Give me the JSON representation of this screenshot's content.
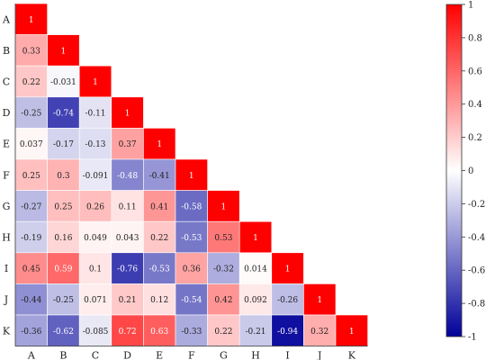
{
  "chart_data": {
    "type": "heatmap",
    "title": "",
    "variables": [
      "A",
      "B",
      "C",
      "D",
      "E",
      "F",
      "G",
      "H",
      "I",
      "J",
      "K"
    ],
    "lower_triangle": [
      [
        1
      ],
      [
        0.33,
        1
      ],
      [
        0.22,
        -0.031,
        1
      ],
      [
        -0.25,
        -0.74,
        -0.11,
        1
      ],
      [
        0.037,
        -0.17,
        -0.13,
        0.37,
        1
      ],
      [
        0.25,
        0.3,
        -0.091,
        -0.48,
        -0.41,
        1
      ],
      [
        -0.27,
        0.25,
        0.26,
        0.11,
        0.41,
        -0.58,
        1
      ],
      [
        -0.19,
        0.16,
        0.049,
        0.043,
        0.22,
        -0.53,
        0.53,
        1
      ],
      [
        0.45,
        0.59,
        0.1,
        -0.76,
        -0.53,
        0.36,
        -0.32,
        0.014,
        1
      ],
      [
        -0.44,
        -0.25,
        0.071,
        0.21,
        0.12,
        -0.54,
        0.42,
        0.092,
        -0.26,
        1
      ],
      [
        -0.36,
        -0.62,
        -0.085,
        0.72,
        0.63,
        -0.33,
        0.22,
        -0.21,
        -0.94,
        0.32,
        1
      ]
    ],
    "value_range": [
      -1,
      1
    ],
    "colorbar": {
      "ticks": [
        1,
        0.8,
        0.6,
        0.4,
        0.2,
        0,
        -0.2,
        -0.4,
        -0.6,
        -0.8,
        -1
      ],
      "tick_labels": [
        "1",
        "0.8",
        "0.6",
        "0.4",
        "0.2",
        "0",
        "-0.2",
        "-0.4",
        "-0.6",
        "-0.8",
        "-1"
      ],
      "position": "right"
    },
    "colors": {
      "positive": "#ff0000",
      "neutral": "#ffffff",
      "negative": "#00009a"
    },
    "grid": false
  }
}
